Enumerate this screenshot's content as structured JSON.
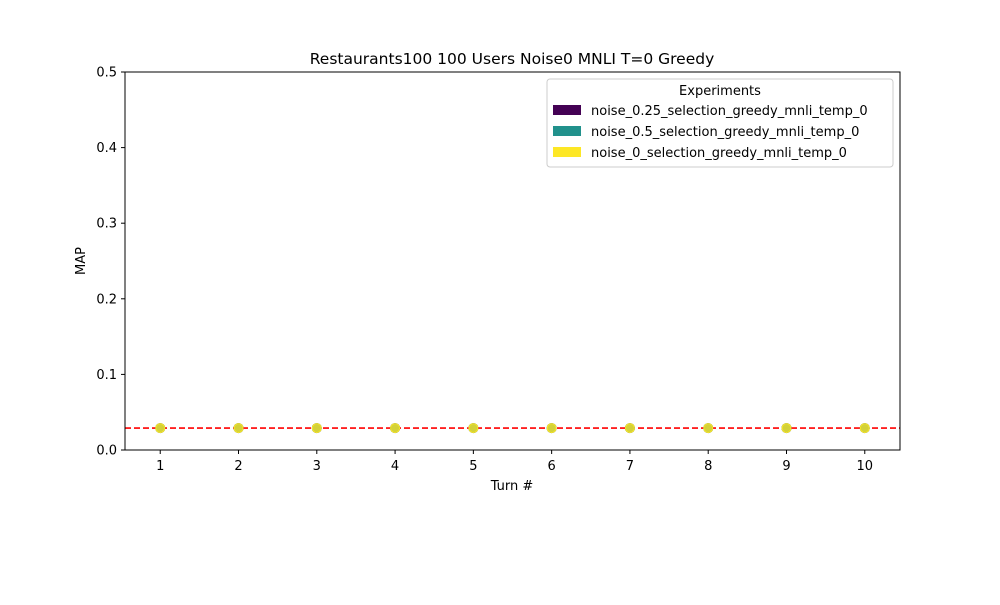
{
  "chart_data": {
    "type": "scatter",
    "title": "Restaurants100 100 Users Noise0 MNLI T=0 Greedy",
    "xlabel": "Turn #",
    "ylabel": "MAP",
    "x": [
      1,
      2,
      3,
      4,
      5,
      6,
      7,
      8,
      9,
      10
    ],
    "xlim": [
      0.55,
      10.45
    ],
    "ylim": [
      0,
      0.5
    ],
    "yticks": [
      0.0,
      0.1,
      0.2,
      0.3,
      0.4,
      0.5
    ],
    "ytick_labels": [
      "0.0",
      "0.1",
      "0.2",
      "0.3",
      "0.4",
      "0.5"
    ],
    "xtick_labels": [
      "1",
      "2",
      "3",
      "4",
      "5",
      "6",
      "7",
      "8",
      "9",
      "10"
    ],
    "grid": false,
    "legend": {
      "title": "Experiments",
      "placement": "top-right"
    },
    "series": [
      {
        "name": "noise_0.25_selection_greedy_mnli_temp_0",
        "color": "#440154",
        "values": [
          0.029,
          0.029,
          0.029,
          0.029,
          0.029,
          0.029,
          0.029,
          0.029,
          0.029,
          0.029
        ]
      },
      {
        "name": "noise_0.5_selection_greedy_mnli_temp_0",
        "color": "#21918c",
        "values": [
          0.029,
          0.029,
          0.029,
          0.029,
          0.029,
          0.029,
          0.029,
          0.029,
          0.029,
          0.029
        ]
      },
      {
        "name": "noise_0_selection_greedy_mnli_temp_0",
        "color": "#fde725",
        "values": [
          0.029,
          0.029,
          0.029,
          0.029,
          0.029,
          0.029,
          0.029,
          0.029,
          0.029,
          0.029
        ]
      }
    ],
    "reference_line": {
      "value": 0.029,
      "color": "#ff0000",
      "style": "dashed"
    }
  }
}
